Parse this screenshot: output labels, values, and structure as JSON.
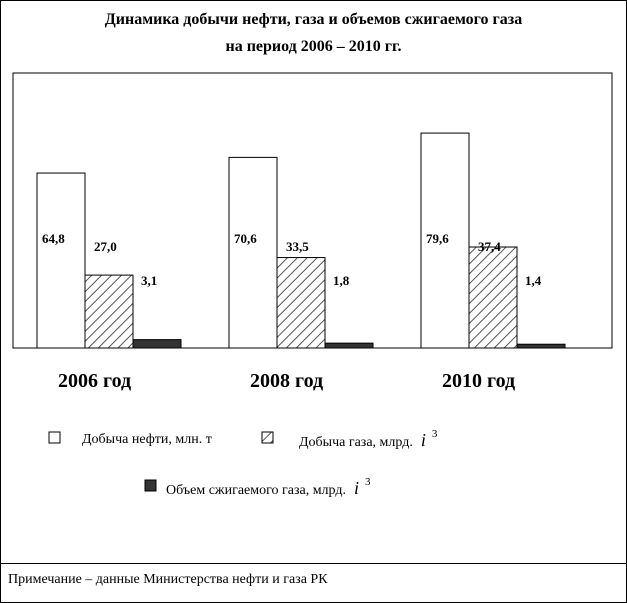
{
  "title": {
    "line1": "Динамика добычи нефти, газа и объемов сжигаемого газа",
    "line2": "на период 2006 – 2010 гг."
  },
  "note": "Примечание – данные Министерства нефти и газа РК",
  "chart_data": {
    "type": "bar",
    "categories": [
      "2006 год",
      "2008 год",
      "2010 год"
    ],
    "series": [
      {
        "name": "Добыча нефти, млн. т",
        "values": [
          64.8,
          70.6,
          79.6
        ],
        "labels": [
          "64,8",
          "70,6",
          "79,6"
        ],
        "fill": "white"
      },
      {
        "name": "Добыча газа, млрд.",
        "values": [
          27.0,
          33.5,
          37.4
        ],
        "labels": [
          "27,0",
          "33,5",
          "37,4"
        ],
        "fill": "hatched"
      },
      {
        "name": "Объем сжигаемого газа, млрд.",
        "values": [
          3.1,
          1.8,
          1.4
        ],
        "labels": [
          "3,1",
          "1,8",
          "1,4"
        ],
        "fill": "dark"
      }
    ],
    "unit_suffix": {
      "glyph": "i",
      "superscript": "3"
    },
    "colors": {
      "outline": "#000000",
      "white_fill": "#ffffff",
      "dark_fill": "#333333",
      "hatch": "#555555"
    },
    "grid": false,
    "legend_placement": "bottom"
  }
}
